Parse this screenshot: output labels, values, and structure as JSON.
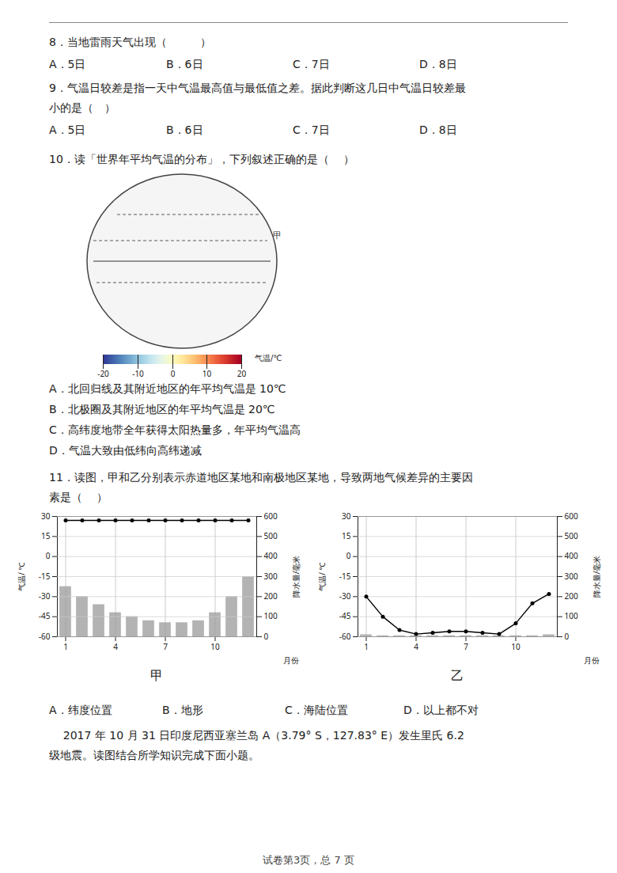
{
  "chart_data": [
    {
      "type": "text",
      "annotations": [
        "8．当地雷雨天气出现（　　　）",
        [
          "A．5日",
          "B．6日",
          "C．7日",
          "D．8日"
        ],
        "9．气温日较差是指一天中气温最高值与最低值之差。据此判断这几日中气温日较差最",
        "小的是（　）",
        [
          "A．5日",
          "B．6日",
          "C．7日",
          "D．8日"
        ],
        "10．读「世界年平均气温的分布」，下列叙述正确的是（　 ）",
        "A．北回归线及其附近地区的年平均气温是 10℃",
        "B．北极圈及其附近地区的年平均气温是 20℃",
        "C．高纬度地带全年获得太阳热量多，年平均气温高",
        "D．气温大致由低纬向高纬递减",
        "11．读图，甲和乙分别表示赤道地区某地和南极地区某地，导致两地气候差异的主要因",
        "素是（　 ）",
        [
          "A．纬度位置",
          "B．地形",
          "C．海陆位置",
          "D．以上都不对"
        ],
        "    2017 年 10 月 31 日印度尼西亚塞兰岛 A（3.79° S，127.83° E）发生里氏 6.2",
        "级地震。读图结合所学知识完成下面小题。",
        "试卷第3页，总 7 页"
      ]
    },
    {
      "type": "colorbar",
      "annotations": [
        "甲"
      ],
      "colorbar_label": "气温/℃",
      "colorbar_range": [
        -20,
        20
      ],
      "colorbar_ticks": [
        -20,
        -10,
        0,
        10,
        20
      ]
    },
    {
      "type": "combo",
      "title": "甲",
      "xlabel": "月份",
      "ylabel": "气温/ ℃",
      "y2label": "降水量/毫米",
      "x": [
        1,
        2,
        3,
        4,
        5,
        6,
        7,
        8,
        9,
        10,
        11,
        12
      ],
      "xlim": [
        0.5,
        12.5
      ],
      "xticks": [
        1,
        4,
        7,
        10
      ],
      "ylim": [
        -60,
        30
      ],
      "yticks": [
        -60,
        -45,
        -30,
        -15,
        0,
        15,
        30
      ],
      "y2lim": [
        0,
        600
      ],
      "y2ticks": [
        0,
        100,
        200,
        300,
        400,
        500,
        600
      ],
      "grid": true,
      "series": [
        {
          "type": "bar",
          "axis": "y2",
          "color": "#999999",
          "values": [
            250,
            200,
            160,
            120,
            100,
            80,
            70,
            70,
            80,
            120,
            200,
            300
          ]
        },
        {
          "type": "line",
          "marker": "o",
          "color": "#000000",
          "values": [
            27,
            27,
            27,
            27,
            27,
            27,
            27,
            27,
            27,
            27,
            27,
            27
          ]
        }
      ]
    },
    {
      "type": "combo",
      "title": "乙",
      "xlabel": "月份",
      "ylabel": "气温/ ℃",
      "y2label": "降水量/毫米",
      "x": [
        1,
        2,
        3,
        4,
        5,
        6,
        7,
        8,
        9,
        10,
        11,
        12
      ],
      "xlim": [
        0.5,
        12.5
      ],
      "xticks": [
        1,
        4,
        7,
        10
      ],
      "ylim": [
        -60,
        30
      ],
      "yticks": [
        -60,
        -45,
        -30,
        -15,
        0,
        15,
        30
      ],
      "y2lim": [
        0,
        600
      ],
      "y2ticks": [
        0,
        100,
        200,
        300,
        400,
        500,
        600
      ],
      "grid": true,
      "series": [
        {
          "type": "bar",
          "axis": "y2",
          "color": "#999999",
          "values": [
            10,
            5,
            5,
            5,
            5,
            5,
            5,
            5,
            5,
            5,
            5,
            10
          ]
        },
        {
          "type": "line",
          "marker": "o",
          "color": "#000000",
          "values": [
            -30,
            -45,
            -55,
            -58,
            -57,
            -56,
            -56,
            -57,
            -58,
            -50,
            -35,
            -28
          ]
        }
      ]
    }
  ]
}
